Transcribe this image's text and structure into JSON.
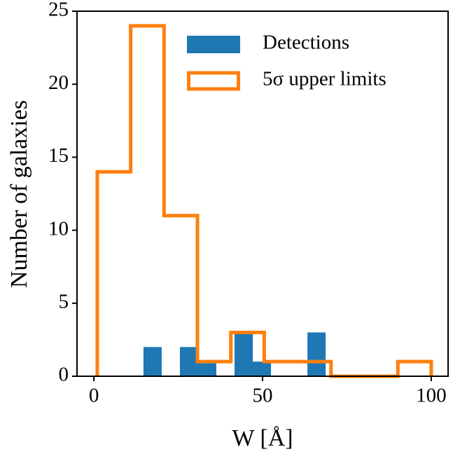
{
  "chart_data": {
    "type": "histogram",
    "x_label": "W [Å]",
    "y_label": "Number of galaxies",
    "xlim": [
      -5,
      105
    ],
    "ylim": [
      0,
      25
    ],
    "xticks": [
      0,
      50,
      100
    ],
    "yticks": [
      0,
      5,
      10,
      15,
      20,
      25
    ],
    "legend": "upper right",
    "series": [
      {
        "name": "Detections",
        "color": "#1f77b4",
        "style": "filled",
        "bins": [
          14.7,
          20.1,
          25.5,
          30.9,
          36.3,
          41.7,
          47.1,
          52.5,
          57.9,
          63.3,
          68.7
        ],
        "values": [
          2,
          0,
          2,
          1,
          0,
          3,
          1,
          0,
          0,
          3
        ]
      },
      {
        "name": "5σ upper limits",
        "color": "#ff7f0e",
        "style": "step",
        "bins": [
          1,
          10.9,
          20.8,
          30.7,
          40.6,
          50.5,
          60.4,
          70.3,
          80.2,
          90.1,
          100
        ],
        "values": [
          14,
          24,
          11,
          1,
          3,
          1,
          1,
          0,
          0,
          1
        ]
      }
    ]
  }
}
